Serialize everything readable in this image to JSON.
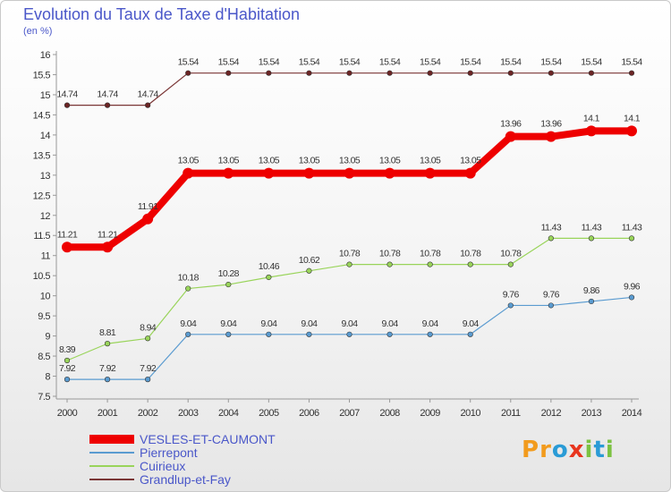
{
  "header": {
    "title": "Evolution du Taux de Taxe d'Habitation",
    "subtitle": "(en %)"
  },
  "logo": {
    "letters": [
      "P",
      "r",
      "o",
      "x",
      "i",
      "t",
      "i"
    ],
    "colors": [
      "#f29b1d",
      "#f29b1d",
      "#2a9bd6",
      "#e8351e",
      "#7cc242",
      "#2a9bd6",
      "#7cc242"
    ]
  },
  "chart_data": {
    "type": "line",
    "title": "Evolution du Taux de Taxe d'Habitation",
    "ylabel": "(en %)",
    "xlabel": "",
    "x": [
      "2000",
      "2001",
      "2002",
      "2003",
      "2004",
      "2005",
      "2006",
      "2007",
      "2008",
      "2009",
      "2010",
      "2011",
      "2012",
      "2013",
      "2014"
    ],
    "ylim": [
      7.5,
      16
    ],
    "yticks": [
      "7.5",
      "8",
      "8.5",
      "9",
      "9.5",
      "10",
      "10.5",
      "11",
      "11.5",
      "12",
      "12.5",
      "13",
      "13.5",
      "14",
      "14.5",
      "15",
      "15.5",
      "16"
    ],
    "grid": false,
    "legend_position": "bottom-left",
    "series": [
      {
        "name": "VESLES-ET-CAUMONT",
        "color": "#ee0000",
        "values": [
          11.21,
          11.21,
          11.91,
          13.05,
          13.05,
          13.05,
          13.05,
          13.05,
          13.05,
          13.05,
          13.05,
          13.96,
          13.96,
          14.1,
          14.1
        ],
        "labels": [
          "11.21",
          "11.21",
          "11.91",
          "13.05",
          "13.05",
          "13.05",
          "13.05",
          "13.05",
          "13.05",
          "13.05",
          "13.05",
          "13.96",
          "13.96",
          "14.1",
          "14.1"
        ]
      },
      {
        "name": "Pierrepont",
        "color": "#5a9bd0",
        "values": [
          7.92,
          7.92,
          7.92,
          9.04,
          9.04,
          9.04,
          9.04,
          9.04,
          9.04,
          9.04,
          9.04,
          9.76,
          9.76,
          9.86,
          9.96
        ],
        "labels": [
          "7.92",
          "7.92",
          "7.92",
          "9.04",
          "9.04",
          "9.04",
          "9.04",
          "9.04",
          "9.04",
          "9.04",
          "9.04",
          "9.76",
          "9.76",
          "9.86",
          "9.96"
        ]
      },
      {
        "name": "Cuirieux",
        "color": "#99d45a",
        "values": [
          8.39,
          8.81,
          8.94,
          10.18,
          10.28,
          10.46,
          10.62,
          10.78,
          10.78,
          10.78,
          10.78,
          10.78,
          11.43,
          11.43,
          11.43
        ],
        "labels": [
          "8.39",
          "8.81",
          "8.94",
          "10.18",
          "10.28",
          "10.46",
          "10.62",
          "10.78",
          "10.78",
          "10.78",
          "10.78",
          "10.78",
          "11.43",
          "11.43",
          "11.43"
        ]
      },
      {
        "name": "Grandlup-et-Fay",
        "color": "#7a3535",
        "values": [
          14.74,
          14.74,
          14.74,
          15.54,
          15.54,
          15.54,
          15.54,
          15.54,
          15.54,
          15.54,
          15.54,
          15.54,
          15.54,
          15.54,
          15.54
        ],
        "labels": [
          "14.74",
          "14.74",
          "14.74",
          "15.54",
          "15.54",
          "15.54",
          "15.54",
          "15.54",
          "15.54",
          "15.54",
          "15.54",
          "15.54",
          "15.54",
          "15.54",
          "15.54"
        ]
      }
    ]
  }
}
